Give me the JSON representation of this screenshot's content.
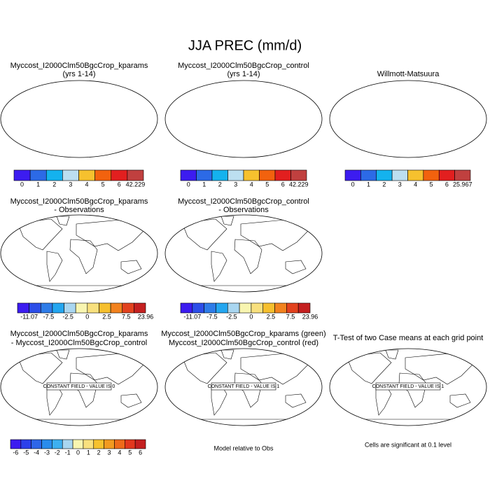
{
  "title": "JJA PREC (mm/d)",
  "panels": [
    {
      "title": [
        "Myccost_I2000Clm50BgcCrop_kparams",
        "(yrs 1-14)"
      ]
    },
    {
      "title": [
        "Myccost_I2000Clm50BgcCrop_control",
        "(yrs 1-14)"
      ]
    },
    {
      "title": [
        "Willmott-Matsuura"
      ]
    },
    {
      "title": [
        "Myccost_I2000Clm50BgcCrop_kparams",
        "- Observations"
      ]
    },
    {
      "title": [
        "Myccost_I2000Clm50BgcCrop_control",
        "- Observations"
      ]
    },
    {
      "title": [
        "Myccost_I2000Clm50BgcCrop_kparams",
        "- Myccost_I2000Clm50BgcCrop_control"
      ],
      "constant_field": "CONSTANT FIELD - VALUE IS 0"
    },
    {
      "title": [
        "Myccost_I2000Clm50BgcCrop_kparams (green)",
        "Myccost_I2000Clm50BgcCrop_control (red)"
      ],
      "constant_field": "CONSTANT FIELD - VALUE IS 1"
    },
    {
      "title": [
        "T-Test of two Case means at each grid point"
      ],
      "constant_field": "CONSTANT FIELD - VALUE IS 1"
    }
  ],
  "colorbars": [
    {
      "labels": [
        "0",
        "1",
        "2",
        "3",
        "4",
        "5",
        "6",
        "42.229"
      ],
      "colors": [
        "#3c1cf0",
        "#2c6ae6",
        "#14b2ee",
        "#bcdff0",
        "#f6c12e",
        "#f2620e",
        "#e21f1f",
        "#c0403f"
      ]
    },
    {
      "labels": [
        "0",
        "1",
        "2",
        "3",
        "4",
        "5",
        "6",
        "42.229"
      ],
      "colors": [
        "#3c1cf0",
        "#2c6ae6",
        "#14b2ee",
        "#bcdff0",
        "#f6c12e",
        "#f2620e",
        "#e21f1f",
        "#c0403f"
      ]
    },
    {
      "labels": [
        "0",
        "1",
        "2",
        "3",
        "4",
        "5",
        "6",
        "25.967"
      ],
      "colors": [
        "#3c1cf0",
        "#2c6ae6",
        "#14b2ee",
        "#bcdff0",
        "#f6c12e",
        "#f2620e",
        "#e21f1f",
        "#c0403f"
      ]
    },
    {
      "labels": [
        "-11.07",
        "-7.5",
        "-2.5",
        "0",
        "2.5",
        "7.5",
        "23.96"
      ],
      "colors": [
        "#3c1cf0",
        "#2c4ee8",
        "#2e7ce8",
        "#24a6f0",
        "#a9d6f0",
        "#f8f5b0",
        "#f8e07e",
        "#f6bf2e",
        "#f2821e",
        "#e2421e",
        "#c42020"
      ]
    },
    {
      "labels": [
        "-11.07",
        "-7.5",
        "-2.5",
        "0",
        "2.5",
        "7.5",
        "23.96"
      ],
      "colors": [
        "#3c1cf0",
        "#2c4ee8",
        "#2e7ce8",
        "#24a6f0",
        "#a9d6f0",
        "#f8f5b0",
        "#f8e07e",
        "#f6bf2e",
        "#f2821e",
        "#e2421e",
        "#c42020"
      ]
    },
    {
      "labels": [
        "-6",
        "-5",
        "-4",
        "-3",
        "-2",
        "-1",
        "0",
        "1",
        "2",
        "3",
        "4",
        "5",
        "6"
      ],
      "colors": [
        "#3c1cf0",
        "#2c40ea",
        "#2e66e8",
        "#2a8cec",
        "#3eb0f0",
        "#a9d6f0",
        "#f8f5b0",
        "#f8e07e",
        "#f6c12e",
        "#f29a20",
        "#ee6a1a",
        "#e2381e",
        "#c42020"
      ]
    }
  ],
  "notes": [
    "Model relative to Obs",
    "Cells are significant at 0.1 level"
  ]
}
